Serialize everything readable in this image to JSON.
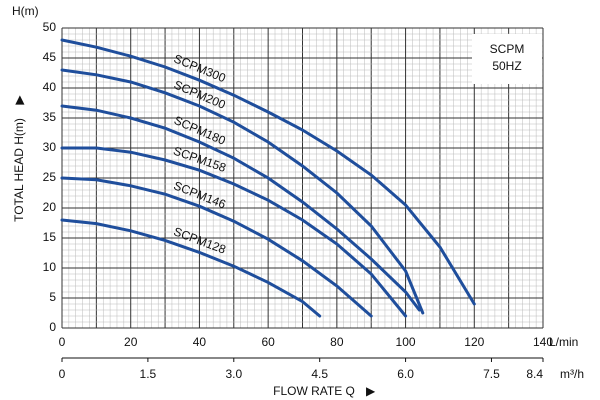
{
  "chart_data": {
    "type": "line",
    "y_label": "TOTAL HEAD H(m)",
    "y_unit": "H(m)",
    "x_label": "FLOW RATE Q",
    "x_unit": "L/min",
    "x2_unit": "m³/h",
    "annotation": [
      "SCPM",
      "50HZ"
    ],
    "xlim": [
      0,
      140
    ],
    "xticks": [
      0,
      20,
      40,
      60,
      80,
      100,
      120,
      140
    ],
    "x2lim": [
      0,
      8.4
    ],
    "x2ticks": [
      0,
      1.5,
      {
        "value": 3,
        "label": "3.0"
      },
      4.5,
      {
        "value": 6,
        "label": "6.0"
      },
      7.5,
      8.4
    ],
    "ylim": [
      0,
      50
    ],
    "yticks": [
      0,
      5,
      10,
      15,
      20,
      25,
      30,
      35,
      40,
      45,
      50
    ],
    "grid": true,
    "series": [
      {
        "name": "SCPM300",
        "color": "#1f4e9c",
        "x": [
          0,
          10,
          20,
          30,
          40,
          50,
          60,
          70,
          80,
          90,
          100,
          110,
          120
        ],
        "values": [
          48,
          46.8,
          45.3,
          43.5,
          41.3,
          38.8,
          36,
          33,
          29.5,
          25.5,
          20.5,
          13.5,
          4
        ]
      },
      {
        "name": "SCPM200",
        "color": "#1f4e9c",
        "x": [
          0,
          10,
          20,
          30,
          40,
          50,
          60,
          70,
          80,
          90,
          100,
          105
        ],
        "values": [
          43,
          42.2,
          41,
          39.2,
          37,
          34.3,
          31,
          27,
          22.5,
          17,
          9.5,
          2.5
        ]
      },
      {
        "name": "SCPM180",
        "color": "#1f4e9c",
        "x": [
          0,
          10,
          20,
          30,
          40,
          50,
          60,
          70,
          80,
          90,
          100,
          104
        ],
        "values": [
          37,
          36.3,
          35,
          33.3,
          31,
          28.3,
          25,
          21,
          16.5,
          11.5,
          6,
          3
        ]
      },
      {
        "name": "SCPM158",
        "color": "#1f4e9c",
        "x": [
          0,
          10,
          20,
          30,
          40,
          50,
          60,
          70,
          80,
          90,
          100
        ],
        "values": [
          30,
          30,
          29.3,
          28,
          26.3,
          24,
          21.3,
          18,
          14,
          9,
          2
        ]
      },
      {
        "name": "SCPM146",
        "color": "#1f4e9c",
        "x": [
          0,
          10,
          20,
          30,
          40,
          50,
          60,
          70,
          80,
          90
        ],
        "values": [
          25,
          24.7,
          23.7,
          22.3,
          20.3,
          17.8,
          14.8,
          11.2,
          7,
          2
        ]
      },
      {
        "name": "SCPM128",
        "color": "#1f4e9c",
        "x": [
          0,
          10,
          20,
          30,
          40,
          50,
          60,
          70,
          75
        ],
        "values": [
          18,
          17.4,
          16.2,
          14.6,
          12.6,
          10.3,
          7.6,
          4.4,
          2
        ]
      }
    ]
  }
}
